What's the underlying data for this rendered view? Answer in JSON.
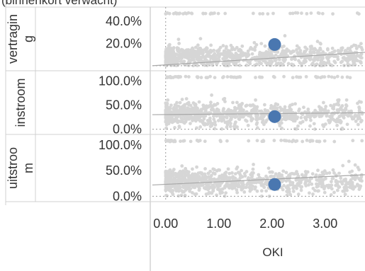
{
  "header_fragment": "(binnenkort verwacht)",
  "chart_data": {
    "type": "scatter",
    "x_axis": {
      "label": "OKI",
      "range": [
        -0.25,
        3.75
      ],
      "ticks": [
        "0.00",
        "1.00",
        "2.00",
        "3.00"
      ],
      "tick_values": [
        0,
        1,
        2,
        3
      ]
    },
    "x_reference_line": 0,
    "panels": [
      {
        "row_label": "vertraging",
        "row_label_lines": [
          "vertragin",
          "g"
        ],
        "ylim": [
          -0.02,
          0.5
        ],
        "yticks": [
          "40.0%",
          "20.0%"
        ],
        "ytick_values": [
          0.4,
          0.2
        ],
        "baseline": 0,
        "trend": {
          "x": [
            -0.25,
            3.75
          ],
          "y": [
            0.0,
            0.12
          ]
        },
        "highlight": {
          "x": 2.05,
          "y": 0.19
        },
        "cloud": {
          "x_min": 0.0,
          "x_max": 3.7,
          "center": 0.08,
          "spread": 0.09
        }
      },
      {
        "row_label": "instroom",
        "row_label_lines": [
          "instroom"
        ],
        "ylim": [
          -0.05,
          1.15
        ],
        "yticks": [
          "100.0%",
          "50.0%",
          "0.0%"
        ],
        "ytick_values": [
          1.0,
          0.5,
          0.0
        ],
        "baseline": 0,
        "trend": {
          "x": [
            -0.25,
            3.75
          ],
          "y": [
            0.3,
            0.34
          ]
        },
        "highlight": {
          "x": 2.05,
          "y": 0.26
        },
        "cloud": {
          "x_min": 0.0,
          "x_max": 3.7,
          "center": 0.3,
          "spread": 0.22
        }
      },
      {
        "row_label": "uitstroom",
        "row_label_lines": [
          "uitstroo",
          "m"
        ],
        "ylim": [
          -0.05,
          1.15
        ],
        "yticks": [
          "100.0%",
          "50.0%",
          "0.0%"
        ],
        "ytick_values": [
          1.0,
          0.5,
          0.0
        ],
        "baseline": 0,
        "trend": {
          "x": [
            -0.25,
            3.75
          ],
          "y": [
            0.22,
            0.42
          ]
        },
        "highlight": {
          "x": 2.05,
          "y": 0.23
        },
        "cloud": {
          "x_min": 0.0,
          "x_max": 3.7,
          "center": 0.28,
          "spread": 0.22
        }
      }
    ],
    "colors": {
      "points": "#d6d6d6",
      "highlight": "#4a77b0",
      "trend": "#a8a8a8",
      "grid": "#cfcfcf",
      "refline": "#9a9a9a"
    }
  }
}
